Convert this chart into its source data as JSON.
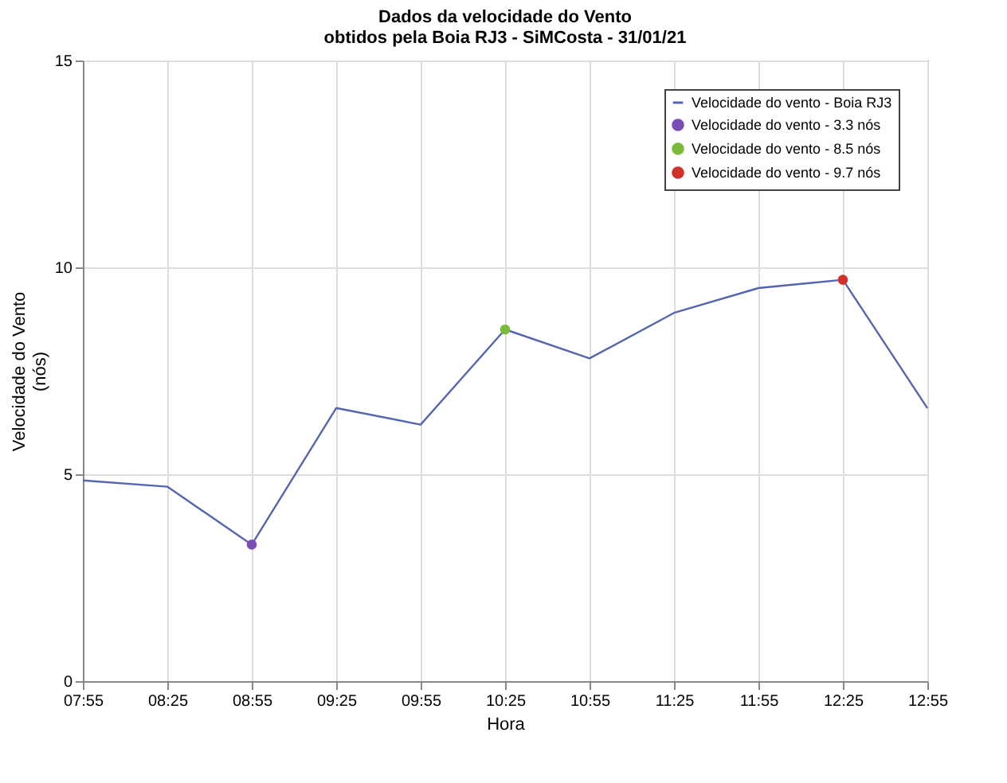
{
  "chart_data": {
    "type": "line",
    "title": "Dados da velocidade do Vento\nobtidos pela Boia RJ3 - SiMCosta - 31/01/21",
    "xlabel": "Hora",
    "ylabel": "Velocidade do Vento\n(nós)",
    "categories": [
      "07:55",
      "08:25",
      "08:55",
      "09:25",
      "09:55",
      "10:25",
      "10:55",
      "11:25",
      "11:55",
      "12:25",
      "12:55"
    ],
    "series": [
      {
        "name": "Velocidade do vento - Boia RJ3",
        "marker": "none",
        "color": "#5566b0",
        "values": [
          4.85,
          4.7,
          3.3,
          6.6,
          6.2,
          8.5,
          7.8,
          8.9,
          9.5,
          9.7,
          6.6
        ]
      },
      {
        "name": "Velocidade do vento - 3.3 nós",
        "type": "scatter",
        "marker": "circle",
        "color": "#7a4fb5",
        "x": [
          "08:55"
        ],
        "values": [
          3.3
        ]
      },
      {
        "name": "Velocidade do vento - 8.5 nós",
        "type": "scatter",
        "marker": "circle",
        "color": "#7cba3c",
        "x": [
          "10:25"
        ],
        "values": [
          8.5
        ]
      },
      {
        "name": "Velocidade do vento - 9.7 nós",
        "type": "scatter",
        "marker": "circle",
        "color": "#d2302a",
        "x": [
          "12:25"
        ],
        "values": [
          9.7
        ]
      }
    ],
    "ylim": [
      0,
      15
    ],
    "yticks": [
      0,
      5,
      10,
      15
    ],
    "grid": true,
    "legend": "top right"
  }
}
